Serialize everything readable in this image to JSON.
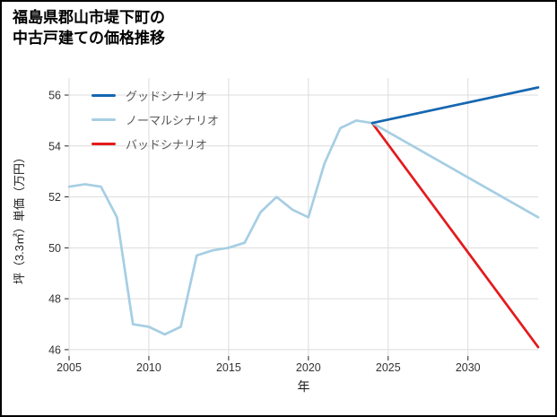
{
  "title": {
    "line1": "福島県郡山市堤下町の",
    "line2": "中古戸建ての価格推移"
  },
  "chart_data": {
    "type": "line",
    "title": "福島県郡山市堤下町の中古戸建ての価格推移",
    "xlabel": "年",
    "ylabel": "坪（3.3㎡）単価（万円）",
    "xlim": [
      2005,
      2034.4
    ],
    "ylim": [
      45.75,
      56.67
    ],
    "xticks": [
      2005,
      2010,
      2015,
      2020,
      2025,
      2030
    ],
    "yticks": [
      46,
      48,
      50,
      52,
      54,
      56
    ],
    "grid": true,
    "legend_position": "upper left inside",
    "colors": {
      "grid": "#dcdcdc",
      "tick": "#262626",
      "tick_label": "#333333",
      "legend_text": "#595959",
      "background": "#ffffff"
    },
    "series": [
      {
        "name": "グッドシナリオ",
        "color": "#1667b1",
        "x": [
          2024,
          2034.4
        ],
        "y": [
          54.9,
          56.3
        ]
      },
      {
        "name": "ノーマルシナリオ",
        "color": "#a6cee3",
        "x": [
          2005,
          2006,
          2007,
          2008,
          2009,
          2010,
          2011,
          2012,
          2013,
          2014,
          2015,
          2016,
          2017,
          2018,
          2019,
          2020,
          2021,
          2022,
          2023,
          2024,
          2034.4
        ],
        "y": [
          52.4,
          52.5,
          52.4,
          51.2,
          47.0,
          46.9,
          46.6,
          46.9,
          49.7,
          49.9,
          50.0,
          50.2,
          51.4,
          52.0,
          51.5,
          51.2,
          53.3,
          54.7,
          55.0,
          54.9,
          51.2
        ]
      },
      {
        "name": "バッドシナリオ",
        "color": "#e31a1c",
        "x": [
          2024,
          2034.4
        ],
        "y": [
          54.9,
          46.1
        ]
      }
    ]
  }
}
